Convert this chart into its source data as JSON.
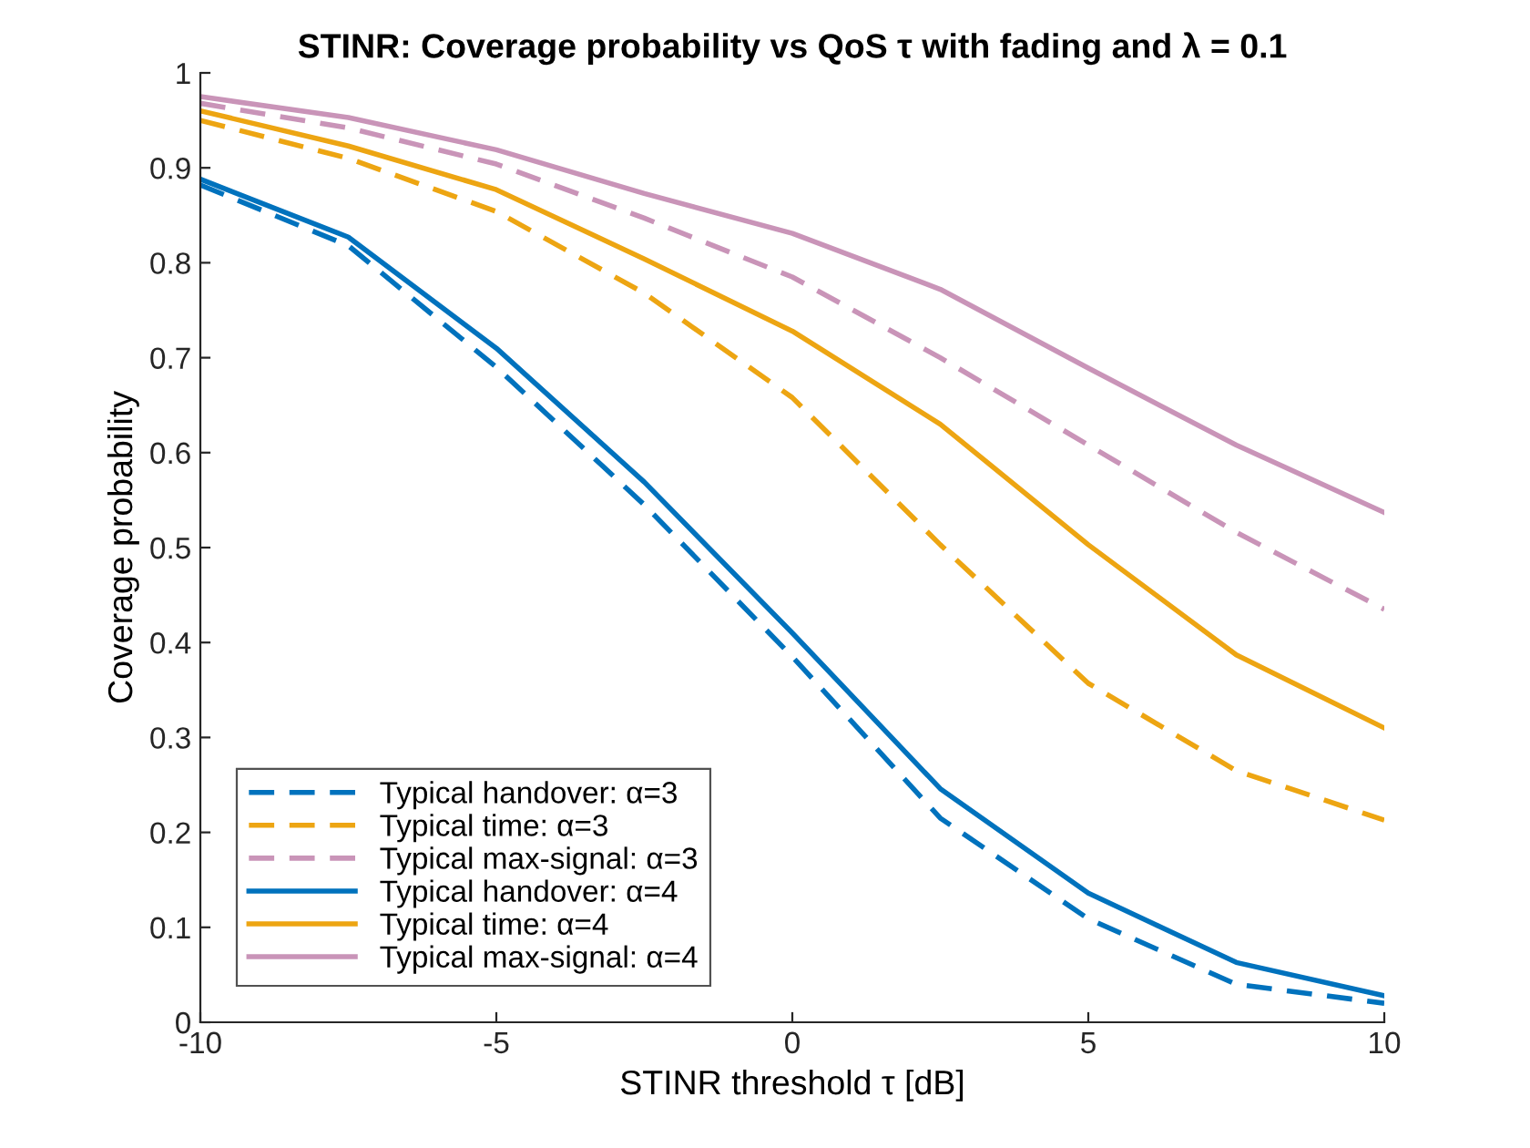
{
  "chart_data": {
    "type": "line",
    "title": "STINR: Coverage probability vs QoS τ with fading and λ = 0.1",
    "xlabel": "STINR threshold τ [dB]",
    "ylabel": "Coverage probability",
    "x": [
      -10,
      -7.5,
      -5,
      -2.5,
      0,
      2.5,
      5,
      7.5,
      10
    ],
    "series": [
      {
        "name": "Typical handover: α=3",
        "color": "#0072bd",
        "line_style": "dashed",
        "values": [
          0.882,
          0.818,
          0.69,
          0.545,
          0.385,
          0.215,
          0.109,
          0.04,
          0.02
        ]
      },
      {
        "name": "Typical time: α=3",
        "color": "#eda512",
        "line_style": "dashed",
        "values": [
          0.95,
          0.91,
          0.854,
          0.768,
          0.658,
          0.503,
          0.357,
          0.265,
          0.213
        ]
      },
      {
        "name": "Typical max-signal: α=3",
        "color": "#c994b8",
        "line_style": "dashed",
        "values": [
          0.968,
          0.942,
          0.904,
          0.847,
          0.785,
          0.7,
          0.608,
          0.516,
          0.435
        ]
      },
      {
        "name": "Typical handover: α=4",
        "color": "#0072bd",
        "line_style": "solid",
        "values": [
          0.888,
          0.827,
          0.71,
          0.569,
          0.41,
          0.246,
          0.136,
          0.063,
          0.028
        ]
      },
      {
        "name": "Typical time: α=4",
        "color": "#eda512",
        "line_style": "solid",
        "values": [
          0.96,
          0.923,
          0.877,
          0.804,
          0.728,
          0.63,
          0.503,
          0.387,
          0.31
        ]
      },
      {
        "name": "Typical max-signal: α=4",
        "color": "#c994b8",
        "line_style": "solid",
        "values": [
          0.975,
          0.953,
          0.919,
          0.873,
          0.831,
          0.772,
          0.689,
          0.608,
          0.537
        ]
      }
    ],
    "xlim": [
      -10,
      10
    ],
    "xticks": [
      -10,
      -5,
      0,
      5,
      10
    ],
    "ylim": [
      0,
      1
    ],
    "yticks": [
      0,
      0.1,
      0.2,
      0.3,
      0.4,
      0.5,
      0.6,
      0.7,
      0.8,
      0.9,
      1
    ],
    "grid": false,
    "legend": "bottom left",
    "marker": "none"
  }
}
